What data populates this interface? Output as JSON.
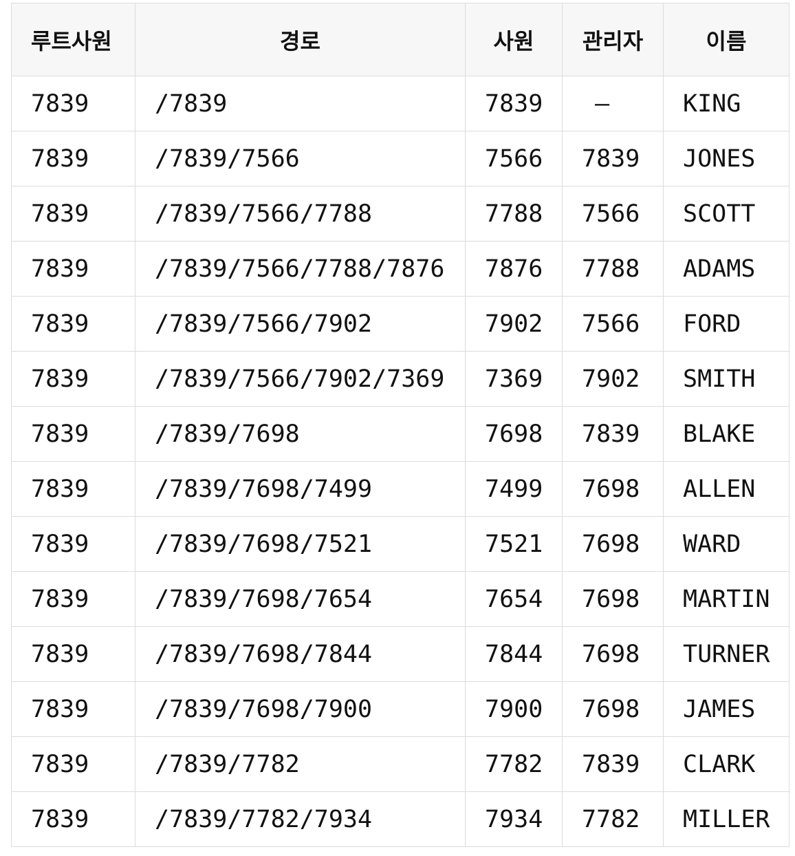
{
  "table": {
    "headers": [
      "루트사원",
      "경로",
      "사원",
      "관리자",
      "이름"
    ],
    "rows": [
      [
        "7839",
        "/7839",
        "7839",
        "–",
        "KING"
      ],
      [
        "7839",
        "/7839/7566",
        "7566",
        "7839",
        "JONES"
      ],
      [
        "7839",
        "/7839/7566/7788",
        "7788",
        "7566",
        "SCOTT"
      ],
      [
        "7839",
        "/7839/7566/7788/7876",
        "7876",
        "7788",
        "ADAMS"
      ],
      [
        "7839",
        "/7839/7566/7902",
        "7902",
        "7566",
        "FORD"
      ],
      [
        "7839",
        "/7839/7566/7902/7369",
        "7369",
        "7902",
        "SMITH"
      ],
      [
        "7839",
        "/7839/7698",
        "7698",
        "7839",
        "BLAKE"
      ],
      [
        "7839",
        "/7839/7698/7499",
        "7499",
        "7698",
        "ALLEN"
      ],
      [
        "7839",
        "/7839/7698/7521",
        "7521",
        "7698",
        "WARD"
      ],
      [
        "7839",
        "/7839/7698/7654",
        "7654",
        "7698",
        "MARTIN"
      ],
      [
        "7839",
        "/7839/7698/7844",
        "7844",
        "7698",
        "TURNER"
      ],
      [
        "7839",
        "/7839/7698/7900",
        "7900",
        "7698",
        "JAMES"
      ],
      [
        "7839",
        "/7839/7782",
        "7782",
        "7839",
        "CLARK"
      ],
      [
        "7839",
        "/7839/7782/7934",
        "7934",
        "7782",
        "MILLER"
      ]
    ]
  }
}
